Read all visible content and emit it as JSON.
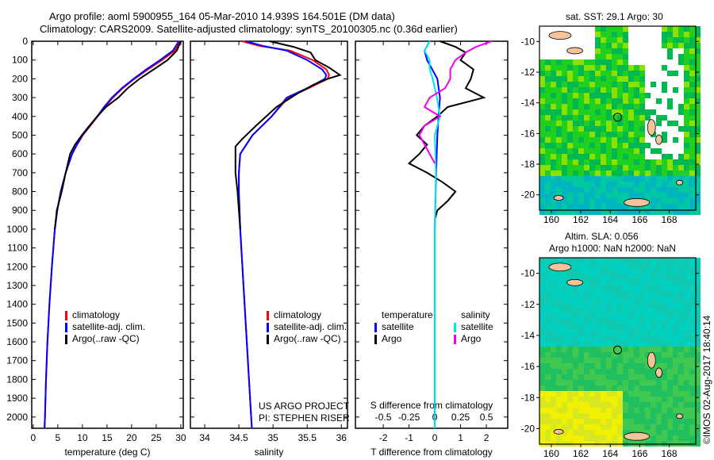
{
  "title_line1": "Argo profile: aoml 5900955_164 05-Mar-2010 14.939S 164.501E (DM data)",
  "title_line2": "Climatology: CARS2009. Satellite-adjusted climatology: synTS_20100305.nc (0.36d earlier)",
  "colors": {
    "climatology": "#ff0000",
    "satellite": "#0000ff",
    "argo": "#000000",
    "sal_satellite": "#00e5ee",
    "sal_argo": "#ee00ee"
  },
  "legend_profile": {
    "climatology": "climatology",
    "satellite": "satellite-adj. clim.",
    "argo": "Argo(..raw -QC)"
  },
  "legend_diff": {
    "temperature": "temperature",
    "salinity": "salinity",
    "satellite": "satellite",
    "argo": "Argo"
  },
  "project": {
    "line1": "US ARGO PROJECT",
    "line2": "PI: STEPHEN RISER"
  },
  "map_top": {
    "title": "sat. SST: 29.1  Argo: 30",
    "lon_ticks": [
      "160",
      "162",
      "164",
      "166",
      "168"
    ],
    "lat_ticks": [
      "-10",
      "-12",
      "-14",
      "-16",
      "-18",
      "-20"
    ]
  },
  "map_bottom": {
    "title1": "Altim. SLA: 0.056",
    "title2": "Argo h1000: NaN h2000: NaN",
    "lon_ticks": [
      "160",
      "162",
      "164",
      "166",
      "168"
    ],
    "lat_ticks": [
      "-10",
      "-12",
      "-14",
      "-16",
      "-18",
      "-20"
    ]
  },
  "float_position": {
    "lat": -14.939,
    "lon": 164.501
  },
  "credit": "©IMOS 02-Aug-2017 18:40:14",
  "chart_data": [
    {
      "type": "line",
      "name": "temperature",
      "xlabel": "temperature (deg C)",
      "ylabel": "",
      "xlim": [
        -0.3,
        30.5
      ],
      "ylim": [
        2060,
        0
      ],
      "xticks": [
        0,
        5,
        10,
        15,
        20,
        25,
        30
      ],
      "yticks": [
        0,
        100,
        200,
        300,
        400,
        500,
        600,
        700,
        800,
        900,
        1000,
        1100,
        1200,
        1300,
        1400,
        1500,
        1600,
        1700,
        1800,
        1900,
        2000
      ],
      "series": [
        {
          "name": "climatology",
          "color": "#ff0000",
          "depth": [
            0,
            50,
            100,
            150,
            200,
            250,
            300,
            350,
            400,
            450,
            500,
            550,
            600,
            700,
            800,
            900,
            1000,
            1200,
            1400,
            1600,
            1800,
            2000,
            2060
          ],
          "values": [
            29.8,
            28.8,
            26.2,
            23.3,
            20.6,
            18.2,
            16.2,
            14.6,
            13.1,
            11.6,
            10.1,
            8.9,
            7.9,
            6.6,
            5.6,
            4.9,
            4.4,
            3.8,
            3.3,
            2.9,
            2.6,
            2.4,
            2.3
          ]
        },
        {
          "name": "satellite-adj. clim.",
          "color": "#0000ff",
          "depth": [
            0,
            50,
            100,
            150,
            200,
            250,
            300,
            350,
            400,
            450,
            500,
            550,
            600,
            700,
            800,
            900,
            1000,
            1200,
            1400,
            1600,
            1800,
            2000,
            2060
          ],
          "values": [
            29.6,
            28.4,
            25.8,
            23.0,
            20.4,
            18.0,
            16.0,
            14.4,
            13.0,
            11.5,
            10.0,
            8.9,
            7.9,
            6.6,
            5.6,
            4.9,
            4.4,
            3.8,
            3.3,
            2.9,
            2.6,
            2.4,
            2.3
          ]
        },
        {
          "name": "Argo",
          "color": "#000000",
          "depth": [
            0,
            50,
            100,
            150,
            200,
            250,
            300,
            350,
            400,
            450,
            500,
            550,
            600,
            700,
            800,
            900,
            1000
          ],
          "values": [
            30.0,
            29.2,
            27.3,
            24.5,
            21.6,
            19.2,
            17.3,
            14.8,
            13.0,
            11.4,
            9.9,
            8.5,
            7.5,
            6.6,
            5.8,
            4.8,
            4.4
          ]
        }
      ]
    },
    {
      "type": "line",
      "name": "salinity",
      "xlabel": "salinity",
      "xlim": [
        33.79,
        36.09
      ],
      "ylim": [
        2060,
        0
      ],
      "xticks": [
        34,
        34.5,
        35,
        35.5,
        36
      ],
      "yticks": [
        0,
        100,
        200,
        300,
        400,
        500,
        600,
        700,
        800,
        900,
        1000,
        1100,
        1200,
        1300,
        1400,
        1500,
        1600,
        1700,
        1800,
        1900,
        2000
      ],
      "series": [
        {
          "name": "climatology",
          "color": "#ff0000",
          "depth": [
            0,
            25,
            50,
            100,
            150,
            180,
            200,
            250,
            300,
            400,
            500,
            600,
            700,
            800,
            1000,
            1500,
            2000,
            2060
          ],
          "values": [
            34.55,
            34.8,
            35.25,
            35.58,
            35.78,
            35.82,
            35.8,
            35.52,
            35.22,
            34.98,
            34.7,
            34.52,
            34.5,
            34.5,
            34.52,
            34.6,
            34.68,
            34.69
          ]
        },
        {
          "name": "satellite-adj. clim.",
          "color": "#0000ff",
          "depth": [
            0,
            25,
            50,
            100,
            150,
            180,
            200,
            250,
            300,
            400,
            500,
            600,
            700,
            800,
            1000,
            1500,
            2000,
            2060
          ],
          "values": [
            34.6,
            34.85,
            35.2,
            35.5,
            35.72,
            35.78,
            35.76,
            35.5,
            35.2,
            34.98,
            34.7,
            34.52,
            34.5,
            34.5,
            34.52,
            34.6,
            34.68,
            34.69
          ]
        },
        {
          "name": "Argo",
          "color": "#000000",
          "depth": [
            0,
            30,
            60,
            100,
            140,
            180,
            200,
            230,
            280,
            350,
            450,
            520,
            560,
            620,
            700,
            800,
            900,
            1000
          ],
          "values": [
            34.95,
            35.3,
            35.55,
            35.62,
            35.82,
            35.98,
            35.8,
            35.6,
            35.35,
            35.05,
            34.75,
            34.55,
            34.45,
            34.45,
            34.45,
            34.48,
            34.5,
            34.52
          ]
        }
      ]
    },
    {
      "type": "line",
      "name": "difference",
      "xlabel": "T difference from climatology",
      "x2label": "S difference from climatology",
      "xlim": [
        -3.08,
        2.83
      ],
      "ylim": [
        2060,
        0
      ],
      "xticks": [
        -2,
        -1,
        0,
        1,
        2
      ],
      "x2ticks": [
        -0.5,
        -0.25,
        0,
        0.25,
        0.5
      ],
      "yticks": [
        0,
        100,
        200,
        300,
        400,
        500,
        600,
        700,
        800,
        900,
        1000,
        1100,
        1200,
        1300,
        1400,
        1500,
        1600,
        1700,
        1800,
        1900,
        2000
      ],
      "series": [
        {
          "name": "temperature satellite",
          "color": "#0000ff",
          "axis": "T",
          "depth": [
            0,
            50,
            100,
            150,
            200,
            300,
            400,
            500,
            700,
            1000,
            1500,
            2060
          ],
          "values": [
            -0.2,
            -0.4,
            -0.3,
            -0.1,
            0.1,
            0.2,
            0.15,
            0.1,
            0.05,
            0,
            0,
            0
          ]
        },
        {
          "name": "temperature Argo",
          "color": "#000000",
          "axis": "T",
          "depth": [
            0,
            30,
            60,
            100,
            150,
            200,
            250,
            300,
            350,
            400,
            450,
            500,
            550,
            600,
            650,
            700,
            750,
            800,
            850,
            900,
            950
          ],
          "values": [
            0.2,
            0.8,
            1.2,
            1.0,
            1.5,
            1.4,
            1.2,
            1.9,
            0.5,
            0.1,
            -0.4,
            -0.7,
            -0.3,
            -0.6,
            -1.0,
            -0.3,
            0.3,
            0.8,
            0.5,
            0.1,
            0
          ]
        },
        {
          "name": "salinity satellite",
          "color": "#00e5ee",
          "axis": "S",
          "depth": [
            0,
            50,
            100,
            150,
            200,
            300,
            400,
            500,
            700,
            1000,
            1500,
            2060
          ],
          "values": [
            -0.05,
            -0.1,
            -0.05,
            -0.05,
            -0.02,
            0.02,
            0.05,
            0,
            0.01,
            0,
            0,
            0
          ]
        },
        {
          "name": "salinity Argo",
          "color": "#ee00ee",
          "axis": "S",
          "depth": [
            0,
            30,
            60,
            100,
            150,
            200,
            250,
            300,
            350,
            400,
            450,
            500,
            550,
            600,
            650
          ],
          "values": [
            0.55,
            0.4,
            0.3,
            0.2,
            0.15,
            0.15,
            0.1,
            -0.05,
            -0.1,
            0.05,
            -0.1,
            -0.15,
            -0.1,
            -0.05,
            0
          ]
        }
      ]
    }
  ]
}
